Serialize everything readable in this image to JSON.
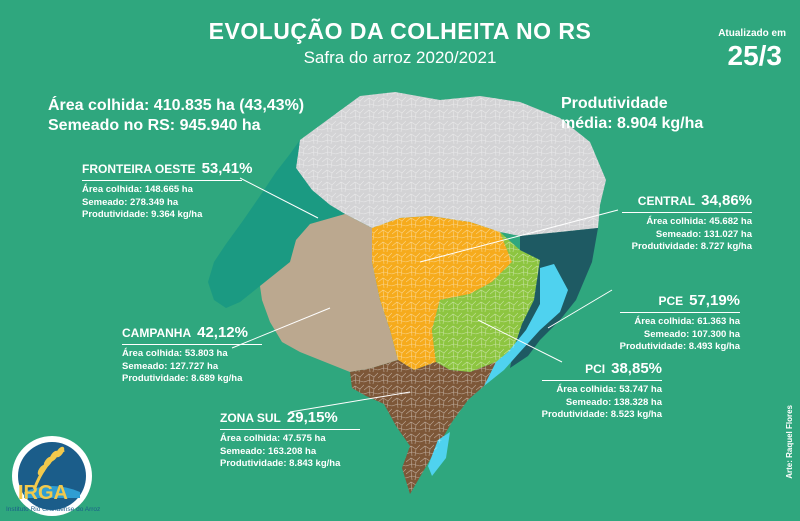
{
  "header": {
    "title": "EVOLUÇÃO DA COLHEITA NO RS",
    "subtitle": "Safra do arroz 2020/2021",
    "updated_label": "Atualizado em",
    "updated_date": "25/3"
  },
  "summary": {
    "area": "Área colhida: 410.835 ha (43,43%)",
    "semeado": "Semeado no RS: 945.940 ha",
    "prod_label": "Produtividade",
    "prod_value": "média: 8.904 kg/ha"
  },
  "regions": {
    "fronteira": {
      "name": "FRONTEIRA OESTE",
      "pct": "53,41%",
      "area": "Área colhida: 148.665 ha",
      "semeado": "Semeado: 278.349 ha",
      "prod": "Produtividade: 9.364 kg/ha",
      "color": "#1b9a82",
      "fraction": 0.5341
    },
    "central": {
      "name": "CENTRAL",
      "pct": "34,86%",
      "area": "Área colhida: 45.682 ha",
      "semeado": "Semeado: 131.027 ha",
      "prod": "Produtividade: 8.727 kg/ha",
      "color": "#f6ab1c",
      "fraction": 0.3486
    },
    "pce": {
      "name": "PCE",
      "pct": "57,19%",
      "area": "Área colhida: 61.363 ha",
      "semeado": "Semeado: 107.300 ha",
      "prod": "Produtividade: 8.493 kg/ha",
      "color": "#1e5a63",
      "fraction": 0.5719
    },
    "campanha": {
      "name": "CAMPANHA",
      "pct": "42,12%",
      "area": "Área colhida: 53.803 ha",
      "semeado": "Semeado: 127.727 ha",
      "prod": "Produtividade: 8.689 kg/ha",
      "color": "#bba88f",
      "fraction": 0.4212
    },
    "pci": {
      "name": "PCI",
      "pct": "38,85%",
      "area": "Área colhida: 53.747 ha",
      "semeado": "Semeado: 138.328 ha",
      "prod": "Produtividade: 8.523 kg/ha",
      "color": "#8dc540",
      "fraction": 0.3885
    },
    "zonasul": {
      "name": "ZONA SUL",
      "pct": "29,15%",
      "area": "Área colhida: 47.575 ha",
      "semeado": "Semeado: 163.208 ha",
      "prod": "Produtividade: 8.843 kg/ha",
      "color": "#7d5738",
      "fraction": 0.2915
    }
  },
  "colors": {
    "background": "#2fa77e",
    "non_rice": "#d3d3d5",
    "lagoon": "#4fd2ef",
    "logo_blue": "#1b5d8a"
  },
  "logo": {
    "name": "IRGA",
    "subtitle": "Instituto Rio Grandense do Arroz"
  },
  "credit": "Arte: Raquel Flores"
}
